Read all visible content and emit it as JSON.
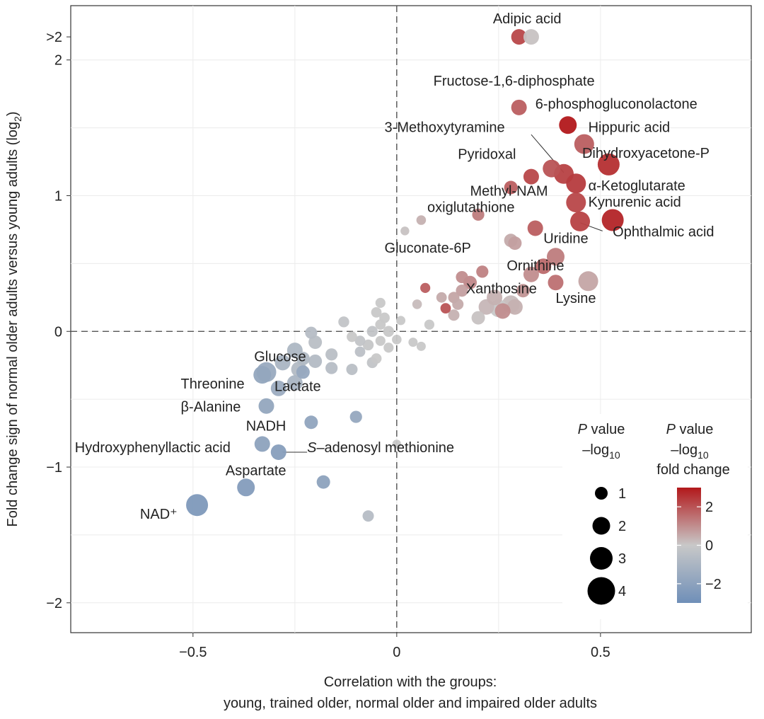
{
  "chart_data": {
    "type": "scatter",
    "xlabel_line1": "Correlation with the groups:",
    "xlabel_line2": "young, trained older, normal older and impaired older adults",
    "ylabel_main": "Fold change sign of normal older adults versus young adults (log",
    "ylabel_sub": "2",
    "ylabel_end": ")",
    "xlim": [
      -0.8,
      0.87
    ],
    "ylim": [
      -2.22,
      2.4
    ],
    "x_ticks": [
      {
        "v": -0.5,
        "label": "−0.5"
      },
      {
        "v": 0,
        "label": "0"
      },
      {
        "v": 0.5,
        "label": "0.5"
      }
    ],
    "y_ticks": [
      {
        "v": -2,
        "label": "−2"
      },
      {
        "v": -1,
        "label": "−1"
      },
      {
        "v": 0,
        "label": "0"
      },
      {
        "v": 1,
        "label": "1"
      },
      {
        "v": 2,
        "label": "2"
      },
      {
        "v": 2.17,
        "label": ">2"
      }
    ],
    "minor_grid_y": [
      -1.5,
      -0.5,
      0.5,
      1.5
    ],
    "minor_grid_x": [
      -0.25,
      0.25
    ],
    "color_scale": {
      "min": -3,
      "max": 3,
      "low": "#6f8fb8",
      "mid": "#c8c8c8",
      "high": "#b2181b"
    },
    "points": [
      {
        "x": 0.3,
        "y": 2.17,
        "p": 2.0,
        "fc": 2.2
      },
      {
        "x": 0.33,
        "y": 2.17,
        "p": 2.0,
        "fc": 0.1
      },
      {
        "x": 0.3,
        "y": 1.65,
        "p": 2.0,
        "fc": 1.8
      },
      {
        "x": 0.42,
        "y": 1.52,
        "p": 2.5,
        "fc": 3.0
      },
      {
        "x": 0.46,
        "y": 1.38,
        "p": 3.0,
        "fc": 1.8
      },
      {
        "x": 0.52,
        "y": 1.23,
        "p": 3.5,
        "fc": 2.6
      },
      {
        "x": 0.38,
        "y": 1.2,
        "p": 2.5,
        "fc": 2.0
      },
      {
        "x": 0.41,
        "y": 1.16,
        "p": 3.0,
        "fc": 2.3
      },
      {
        "x": 0.33,
        "y": 1.14,
        "p": 2.0,
        "fc": 2.2
      },
      {
        "x": 0.44,
        "y": 1.09,
        "p": 3.0,
        "fc": 2.4
      },
      {
        "x": 0.28,
        "y": 1.06,
        "p": 1.5,
        "fc": 1.8
      },
      {
        "x": 0.44,
        "y": 0.95,
        "p": 3.0,
        "fc": 2.2
      },
      {
        "x": 0.53,
        "y": 0.82,
        "p": 3.5,
        "fc": 2.8
      },
      {
        "x": 0.45,
        "y": 0.81,
        "p": 3.0,
        "fc": 2.3
      },
      {
        "x": 0.34,
        "y": 0.76,
        "p": 2.0,
        "fc": 1.8
      },
      {
        "x": 0.2,
        "y": 0.86,
        "p": 1.2,
        "fc": 1.3
      },
      {
        "x": 0.28,
        "y": 0.67,
        "p": 1.5,
        "fc": 0.5
      },
      {
        "x": 0.29,
        "y": 0.65,
        "p": 1.5,
        "fc": 0.7
      },
      {
        "x": 0.39,
        "y": 0.55,
        "p": 2.5,
        "fc": 1.3
      },
      {
        "x": 0.36,
        "y": 0.48,
        "p": 2.0,
        "fc": 1.6
      },
      {
        "x": 0.33,
        "y": 0.42,
        "p": 2.0,
        "fc": 1.0
      },
      {
        "x": 0.39,
        "y": 0.36,
        "p": 2.0,
        "fc": 1.5
      },
      {
        "x": 0.47,
        "y": 0.37,
        "p": 3.0,
        "fc": 0.6
      },
      {
        "x": 0.31,
        "y": 0.3,
        "p": 1.5,
        "fc": 0.9
      },
      {
        "x": 0.28,
        "y": 0.2,
        "p": 2.5,
        "fc": 0.2
      },
      {
        "x": 0.25,
        "y": 0.17,
        "p": 2.5,
        "fc": 0.0
      },
      {
        "x": 0.29,
        "y": 0.18,
        "p": 2.0,
        "fc": 0.4
      },
      {
        "x": 0.22,
        "y": 0.18,
        "p": 2.0,
        "fc": 0.3
      },
      {
        "x": 0.2,
        "y": 0.1,
        "p": 1.5,
        "fc": 0.1
      },
      {
        "x": 0.24,
        "y": 0.25,
        "p": 2.0,
        "fc": 0.4
      },
      {
        "x": 0.26,
        "y": 0.15,
        "p": 2.0,
        "fc": 1.0
      },
      {
        "x": 0.18,
        "y": 0.36,
        "p": 1.5,
        "fc": 1.1
      },
      {
        "x": 0.21,
        "y": 0.44,
        "p": 1.2,
        "fc": 1.2
      },
      {
        "x": 0.16,
        "y": 0.4,
        "p": 1.2,
        "fc": 1.0
      },
      {
        "x": 0.16,
        "y": 0.3,
        "p": 1.2,
        "fc": 0.7
      },
      {
        "x": 0.14,
        "y": 0.25,
        "p": 1.0,
        "fc": 0.6
      },
      {
        "x": 0.11,
        "y": 0.25,
        "p": 0.8,
        "fc": 0.5
      },
      {
        "x": 0.15,
        "y": 0.2,
        "p": 1.0,
        "fc": 0.5
      },
      {
        "x": 0.12,
        "y": 0.17,
        "p": 0.8,
        "fc": 2.0
      },
      {
        "x": 0.14,
        "y": 0.12,
        "p": 1.0,
        "fc": 0.4
      },
      {
        "x": 0.07,
        "y": 0.32,
        "p": 0.7,
        "fc": 1.8
      },
      {
        "x": 0.05,
        "y": 0.2,
        "p": 0.6,
        "fc": 0.2
      },
      {
        "x": 0.06,
        "y": 0.82,
        "p": 0.6,
        "fc": 0.4
      },
      {
        "x": 0.02,
        "y": 0.74,
        "p": 0.4,
        "fc": 0.1
      },
      {
        "x": 0.08,
        "y": 0.05,
        "p": 0.7,
        "fc": 0.0
      },
      {
        "x": 0.04,
        "y": -0.08,
        "p": 0.5,
        "fc": 0.0
      },
      {
        "x": 0.06,
        "y": -0.11,
        "p": 0.5,
        "fc": 0.0
      },
      {
        "x": 0.01,
        "y": 0.08,
        "p": 0.5,
        "fc": 0.0
      },
      {
        "x": 0.0,
        "y": -0.06,
        "p": 0.6,
        "fc": 0.0
      },
      {
        "x": -0.02,
        "y": -0.12,
        "p": 0.7,
        "fc": 0.0
      },
      {
        "x": -0.04,
        "y": -0.07,
        "p": 0.7,
        "fc": 0.0
      },
      {
        "x": -0.02,
        "y": 0.0,
        "p": 0.9,
        "fc": 0.0
      },
      {
        "x": -0.04,
        "y": 0.05,
        "p": 0.8,
        "fc": 0.0
      },
      {
        "x": -0.03,
        "y": 0.1,
        "p": 0.8,
        "fc": 0.0
      },
      {
        "x": -0.05,
        "y": 0.14,
        "p": 0.8,
        "fc": 0.0
      },
      {
        "x": -0.06,
        "y": 0.0,
        "p": 0.9,
        "fc": -0.2
      },
      {
        "x": -0.07,
        "y": -0.1,
        "p": 0.9,
        "fc": -0.1
      },
      {
        "x": -0.09,
        "y": -0.07,
        "p": 0.8,
        "fc": -0.2
      },
      {
        "x": -0.11,
        "y": -0.04,
        "p": 0.8,
        "fc": 0.0
      },
      {
        "x": -0.11,
        "y": -0.28,
        "p": 1.0,
        "fc": -0.5
      },
      {
        "x": -0.13,
        "y": 0.07,
        "p": 0.9,
        "fc": -0.2
      },
      {
        "x": -0.06,
        "y": -0.23,
        "p": 0.9,
        "fc": -0.2
      },
      {
        "x": -0.04,
        "y": 0.21,
        "p": 0.7,
        "fc": 0.0
      },
      {
        "x": -0.05,
        "y": -0.2,
        "p": 0.8,
        "fc": 0.0
      },
      {
        "x": -0.09,
        "y": -0.15,
        "p": 0.8,
        "fc": -0.4
      },
      {
        "x": -0.16,
        "y": -0.17,
        "p": 1.2,
        "fc": -0.5
      },
      {
        "x": -0.16,
        "y": -0.27,
        "p": 1.2,
        "fc": -0.6
      },
      {
        "x": -0.2,
        "y": -0.22,
        "p": 1.5,
        "fc": -0.7
      },
      {
        "x": -0.2,
        "y": -0.08,
        "p": 1.5,
        "fc": -0.5
      },
      {
        "x": -0.21,
        "y": -0.01,
        "p": 1.2,
        "fc": -0.6
      },
      {
        "x": -0.23,
        "y": -0.2,
        "p": 1.5,
        "fc": -0.8
      },
      {
        "x": -0.25,
        "y": -0.14,
        "p": 2.0,
        "fc": -0.9
      },
      {
        "x": -0.24,
        "y": -0.28,
        "p": 2.0,
        "fc": -0.7
      },
      {
        "x": -0.28,
        "y": -0.23,
        "p": 2.0,
        "fc": -1.0
      },
      {
        "x": -0.25,
        "y": -0.38,
        "p": 2.0,
        "fc": -1.0
      },
      {
        "x": -0.29,
        "y": -0.42,
        "p": 2.0,
        "fc": -1.5
      },
      {
        "x": -0.23,
        "y": -0.3,
        "p": 1.5,
        "fc": -1.7
      },
      {
        "x": -0.33,
        "y": -0.32,
        "p": 2.5,
        "fc": -1.8
      },
      {
        "x": -0.32,
        "y": -0.3,
        "p": 3.0,
        "fc": -1.6
      },
      {
        "x": -0.32,
        "y": -0.55,
        "p": 2.0,
        "fc": -1.8
      },
      {
        "x": -0.21,
        "y": -0.67,
        "p": 1.5,
        "fc": -1.9
      },
      {
        "x": -0.1,
        "y": -0.63,
        "p": 1.2,
        "fc": -1.7
      },
      {
        "x": -0.33,
        "y": -0.83,
        "p": 2.0,
        "fc": -2.0
      },
      {
        "x": -0.29,
        "y": -0.89,
        "p": 2.0,
        "fc": -2.2
      },
      {
        "x": -0.37,
        "y": -1.15,
        "p": 2.5,
        "fc": -2.3
      },
      {
        "x": -0.18,
        "y": -1.11,
        "p": 1.5,
        "fc": -2.0
      },
      {
        "x": -0.49,
        "y": -1.28,
        "p": 3.5,
        "fc": -2.5
      },
      {
        "x": -0.07,
        "y": -1.36,
        "p": 1.0,
        "fc": -0.6
      },
      {
        "x": 0.0,
        "y": -0.83,
        "p": 0.4,
        "fc": 0.0
      }
    ],
    "labels": [
      {
        "text": "Adipic acid",
        "x": 0.32,
        "y": 2.27,
        "anchor": "middle"
      },
      {
        "text": "Fructose-1,6-diphosphate",
        "x": 0.09,
        "y": 1.81,
        "anchor": "start"
      },
      {
        "text": "6-phosphogluconolactone",
        "x": 0.34,
        "y": 1.64,
        "anchor": "start"
      },
      {
        "text": "Hippuric acid",
        "x": 0.47,
        "y": 1.47,
        "anchor": "start"
      },
      {
        "text": "3-Methoxytyramine",
        "x": -0.03,
        "y": 1.47,
        "anchor": "start"
      },
      {
        "text": "Dihydroxyacetone-P",
        "x": 0.455,
        "y": 1.28,
        "anchor": "start"
      },
      {
        "text": "Pyridoxal",
        "x": 0.15,
        "y": 1.27,
        "anchor": "start"
      },
      {
        "text": "α-Ketoglutarate",
        "x": 0.47,
        "y": 1.04,
        "anchor": "start"
      },
      {
        "text": "Methyl-NAM",
        "x": 0.18,
        "y": 1.0,
        "anchor": "start"
      },
      {
        "text": "Kynurenic acid",
        "x": 0.47,
        "y": 0.92,
        "anchor": "start"
      },
      {
        "text": "oxiglutathione",
        "x": 0.075,
        "y": 0.88,
        "anchor": "start"
      },
      {
        "text": "Ophthalmic acid",
        "x": 0.53,
        "y": 0.7,
        "anchor": "start"
      },
      {
        "text": "Uridine",
        "x": 0.36,
        "y": 0.65,
        "anchor": "start"
      },
      {
        "text": "Gluconate-6P",
        "x": -0.03,
        "y": 0.58,
        "anchor": "start"
      },
      {
        "text": "Ornithine",
        "x": 0.27,
        "y": 0.45,
        "anchor": "start"
      },
      {
        "text": "Xanthosine",
        "x": 0.17,
        "y": 0.28,
        "anchor": "start"
      },
      {
        "text": "Lysine",
        "x": 0.39,
        "y": 0.21,
        "anchor": "start"
      },
      {
        "text": "Glucose",
        "x": -0.35,
        "y": -0.22,
        "anchor": "start"
      },
      {
        "text": "Threonine",
        "x": -0.53,
        "y": -0.42,
        "anchor": "start"
      },
      {
        "text": "Lactate",
        "x": -0.3,
        "y": -0.44,
        "anchor": "start"
      },
      {
        "text": "β-Alanine",
        "x": -0.53,
        "y": -0.59,
        "anchor": "start"
      },
      {
        "text": "NADH",
        "x": -0.37,
        "y": -0.73,
        "anchor": "start"
      },
      {
        "text": "Hydroxyphenyllactic acid",
        "x": -0.79,
        "y": -0.89,
        "anchor": "start"
      },
      {
        "text": "S–adenosyl methionine",
        "x": -0.22,
        "y": -0.89,
        "anchor": "start",
        "italic_prefix": "S"
      },
      {
        "text": "Aspartate",
        "x": -0.42,
        "y": -1.06,
        "anchor": "start"
      },
      {
        "text": "NAD⁺",
        "x": -0.63,
        "y": -1.38,
        "anchor": "start"
      }
    ],
    "leaders": [
      {
        "x1": 0.33,
        "y1": 1.45,
        "x2": 0.41,
        "y2": 1.17
      },
      {
        "x1": 0.45,
        "y1": 0.8,
        "x2": 0.505,
        "y2": 0.74
      },
      {
        "x1": -0.28,
        "y1": -0.89,
        "x2": -0.22,
        "y2": -0.89
      }
    ],
    "legend": {
      "size_title_line1": "P",
      "size_title_line1_rest": " value",
      "size_title_line2": "–log",
      "size_title_sub": "10",
      "size_entries": [
        {
          "label": "1",
          "p": 1
        },
        {
          "label": "2",
          "p": 2
        },
        {
          "label": "3",
          "p": 3
        },
        {
          "label": "4",
          "p": 4
        }
      ],
      "color_title_line1": "P",
      "color_title_line1_rest": " value",
      "color_title_line2": "–log",
      "color_title_sub": "10",
      "color_title_line3": "fold change",
      "color_ticks": [
        {
          "v": 2,
          "label": "2"
        },
        {
          "v": 0,
          "label": "0"
        },
        {
          "v": -2,
          "label": "−2"
        }
      ]
    }
  }
}
